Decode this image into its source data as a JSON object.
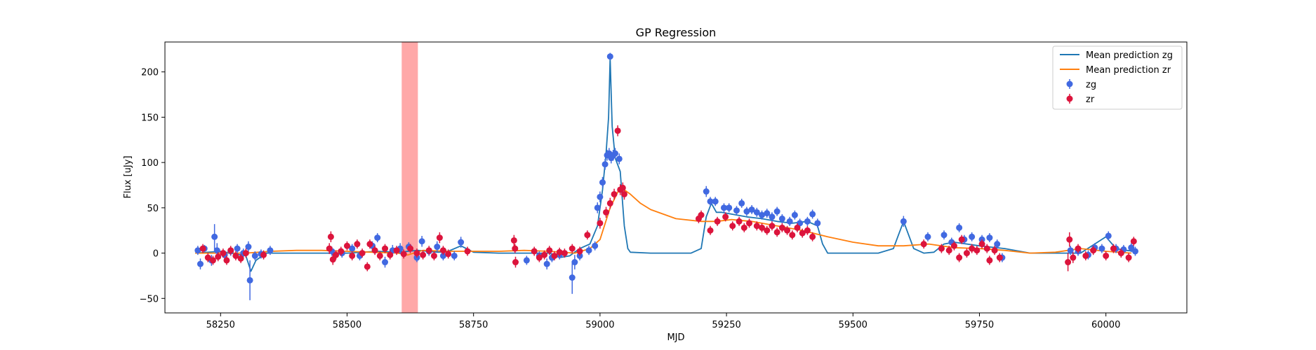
{
  "chart_data": {
    "type": "scatter",
    "title": "GP Regression",
    "xlabel": "MJD",
    "ylabel": "Flux [uJy]",
    "xlim": [
      58140,
      60160
    ],
    "ylim": [
      -66,
      233
    ],
    "xticks": [
      58250,
      58500,
      58750,
      59000,
      59250,
      59500,
      59750,
      60000
    ],
    "yticks": [
      -50,
      0,
      50,
      100,
      150,
      200
    ],
    "legend_position": "top-right",
    "highlight_band": {
      "x_range": [
        58608,
        58640
      ],
      "color": "#ff9999"
    },
    "series": [
      {
        "name": "Mean prediction zg",
        "kind": "line",
        "color": "#1f77b4",
        "x": [
          58200,
          58250,
          58300,
          58310,
          58320,
          58340,
          58400,
          58500,
          58560,
          58600,
          58640,
          58680,
          58700,
          58725,
          58750,
          58800,
          58850,
          58900,
          58920,
          58940,
          58960,
          58980,
          58995,
          59005,
          59012,
          59017,
          59020,
          59024,
          59030,
          59040,
          59048,
          59055,
          59060,
          59100,
          59180,
          59200,
          59210,
          59220,
          59230,
          59240,
          59260,
          59290,
          59320,
          59350,
          59380,
          59410,
          59430,
          59440,
          59450,
          59480,
          59550,
          59580,
          59590,
          59600,
          59610,
          59620,
          59640,
          59660,
          59680,
          59700,
          59750,
          59800,
          59850,
          59900,
          59950,
          60000,
          60020,
          60040,
          60060
        ],
        "y": [
          0,
          2,
          -3,
          -20,
          -8,
          0,
          0,
          0,
          2,
          1,
          3,
          1,
          2,
          8,
          1,
          0,
          0,
          0,
          -5,
          -3,
          5,
          10,
          30,
          70,
          110,
          150,
          215,
          140,
          105,
          90,
          30,
          5,
          1,
          0,
          0,
          5,
          40,
          55,
          45,
          45,
          43,
          40,
          38,
          35,
          33,
          35,
          30,
          10,
          0,
          0,
          0,
          5,
          20,
          35,
          20,
          5,
          0,
          1,
          10,
          12,
          8,
          5,
          0,
          0,
          0,
          18,
          5,
          3,
          2
        ]
      },
      {
        "name": "Mean prediction zr",
        "kind": "line",
        "color": "#ff7f0e",
        "x": [
          58200,
          58300,
          58350,
          58400,
          58450,
          58500,
          58550,
          58600,
          58620,
          58650,
          58700,
          58750,
          58800,
          58850,
          58900,
          58950,
          58980,
          59000,
          59020,
          59040,
          59060,
          59080,
          59100,
          59150,
          59200,
          59230,
          59260,
          59300,
          59350,
          59400,
          59450,
          59500,
          59550,
          59600,
          59650,
          59700,
          59750,
          59800,
          59850,
          59900,
          59950,
          60000,
          60050
        ],
        "y": [
          0,
          0,
          2,
          3,
          3,
          2,
          1,
          0,
          -2,
          3,
          2,
          2,
          2,
          3,
          2,
          0,
          5,
          15,
          50,
          73,
          65,
          55,
          48,
          38,
          35,
          35,
          37,
          35,
          30,
          25,
          18,
          12,
          8,
          8,
          10,
          6,
          5,
          3,
          0,
          1,
          5,
          2,
          0
        ]
      },
      {
        "name": "zg",
        "kind": "errorbar",
        "color": "#4169e1",
        "points": [
          [
            58205,
            3,
            5
          ],
          [
            58210,
            -12,
            6
          ],
          [
            58218,
            5,
            4
          ],
          [
            58232,
            -8,
            6
          ],
          [
            58238,
            18,
            14
          ],
          [
            58243,
            3,
            8
          ],
          [
            58258,
            -2,
            5
          ],
          [
            58270,
            2,
            5
          ],
          [
            58283,
            5,
            5
          ],
          [
            58295,
            0,
            5
          ],
          [
            58305,
            7,
            6
          ],
          [
            58308,
            -30,
            22
          ],
          [
            58318,
            -3,
            5
          ],
          [
            58330,
            -1,
            5
          ],
          [
            58348,
            3,
            5
          ],
          [
            58470,
            2,
            5
          ],
          [
            58490,
            0,
            5
          ],
          [
            58510,
            5,
            5
          ],
          [
            58525,
            -3,
            5
          ],
          [
            58550,
            8,
            5
          ],
          [
            58560,
            17,
            5
          ],
          [
            58575,
            -10,
            6
          ],
          [
            58590,
            3,
            6
          ],
          [
            58605,
            5,
            6
          ],
          [
            58622,
            7,
            5
          ],
          [
            58638,
            -5,
            5
          ],
          [
            58648,
            13,
            6
          ],
          [
            58662,
            2,
            5
          ],
          [
            58678,
            7,
            6
          ],
          [
            58690,
            -3,
            5
          ],
          [
            58712,
            -3,
            5
          ],
          [
            58725,
            12,
            6
          ],
          [
            58855,
            -8,
            5
          ],
          [
            58880,
            -3,
            5
          ],
          [
            58895,
            -12,
            6
          ],
          [
            58905,
            -5,
            5
          ],
          [
            58920,
            -2,
            5
          ],
          [
            58945,
            -27,
            18
          ],
          [
            58950,
            -10,
            8
          ],
          [
            58960,
            -3,
            5
          ],
          [
            58978,
            3,
            5
          ],
          [
            58990,
            8,
            5
          ],
          [
            58995,
            50,
            6
          ],
          [
            59000,
            62,
            6
          ],
          [
            59005,
            78,
            6
          ],
          [
            59010,
            98,
            6
          ],
          [
            59014,
            108,
            6
          ],
          [
            59018,
            110,
            6
          ],
          [
            59020,
            217,
            4
          ],
          [
            59022,
            105,
            6
          ],
          [
            59026,
            108,
            6
          ],
          [
            59030,
            110,
            6
          ],
          [
            59038,
            104,
            6
          ],
          [
            59210,
            68,
            6
          ],
          [
            59218,
            57,
            5
          ],
          [
            59228,
            57,
            5
          ],
          [
            59245,
            50,
            5
          ],
          [
            59255,
            50,
            5
          ],
          [
            59270,
            47,
            5
          ],
          [
            59280,
            55,
            5
          ],
          [
            59290,
            46,
            5
          ],
          [
            59300,
            48,
            5
          ],
          [
            59310,
            45,
            5
          ],
          [
            59320,
            42,
            5
          ],
          [
            59330,
            44,
            5
          ],
          [
            59340,
            40,
            5
          ],
          [
            59350,
            46,
            5
          ],
          [
            59360,
            38,
            5
          ],
          [
            59375,
            35,
            5
          ],
          [
            59385,
            42,
            5
          ],
          [
            59395,
            33,
            5
          ],
          [
            59410,
            35,
            5
          ],
          [
            59420,
            43,
            5
          ],
          [
            59430,
            33,
            5
          ],
          [
            59600,
            35,
            6
          ],
          [
            59648,
            18,
            5
          ],
          [
            59680,
            20,
            5
          ],
          [
            59695,
            12,
            5
          ],
          [
            59710,
            28,
            5
          ],
          [
            59720,
            15,
            5
          ],
          [
            59735,
            18,
            5
          ],
          [
            59755,
            15,
            5
          ],
          [
            59770,
            17,
            5
          ],
          [
            59785,
            10,
            5
          ],
          [
            59795,
            -5,
            5
          ],
          [
            59930,
            3,
            5
          ],
          [
            59945,
            2,
            5
          ],
          [
            59965,
            -2,
            5
          ],
          [
            59978,
            6,
            5
          ],
          [
            59992,
            5,
            5
          ],
          [
            60005,
            19,
            5
          ],
          [
            60020,
            5,
            5
          ],
          [
            60035,
            4,
            5
          ],
          [
            60050,
            6,
            5
          ],
          [
            60058,
            2,
            5
          ]
        ]
      },
      {
        "name": "zr",
        "kind": "errorbar",
        "color": "#dc143c",
        "points": [
          [
            58215,
            5,
            5
          ],
          [
            58225,
            -5,
            5
          ],
          [
            58235,
            -8,
            5
          ],
          [
            58245,
            -4,
            5
          ],
          [
            58255,
            0,
            5
          ],
          [
            58262,
            -8,
            5
          ],
          [
            58270,
            3,
            5
          ],
          [
            58280,
            -3,
            5
          ],
          [
            58290,
            -6,
            5
          ],
          [
            58300,
            0,
            5
          ],
          [
            58335,
            -2,
            5
          ],
          [
            58465,
            5,
            6
          ],
          [
            58468,
            18,
            6
          ],
          [
            58472,
            -7,
            6
          ],
          [
            58478,
            -2,
            5
          ],
          [
            58488,
            2,
            5
          ],
          [
            58500,
            8,
            5
          ],
          [
            58510,
            -3,
            5
          ],
          [
            58520,
            10,
            5
          ],
          [
            58530,
            0,
            5
          ],
          [
            58540,
            -15,
            5
          ],
          [
            58545,
            10,
            5
          ],
          [
            58555,
            3,
            5
          ],
          [
            58565,
            -3,
            5
          ],
          [
            58575,
            5,
            5
          ],
          [
            58585,
            -2,
            5
          ],
          [
            58598,
            3,
            5
          ],
          [
            58612,
            -1,
            5
          ],
          [
            58625,
            5,
            5
          ],
          [
            58638,
            0,
            5
          ],
          [
            58650,
            -2,
            5
          ],
          [
            58662,
            3,
            5
          ],
          [
            58672,
            -3,
            5
          ],
          [
            58683,
            17,
            6
          ],
          [
            58690,
            3,
            5
          ],
          [
            58700,
            -1,
            5
          ],
          [
            58738,
            2,
            5
          ],
          [
            58830,
            14,
            6
          ],
          [
            58832,
            5,
            5
          ],
          [
            58833,
            -10,
            6
          ],
          [
            58870,
            2,
            5
          ],
          [
            58880,
            -5,
            5
          ],
          [
            58890,
            -2,
            5
          ],
          [
            58900,
            3,
            5
          ],
          [
            58910,
            -3,
            5
          ],
          [
            58920,
            1,
            5
          ],
          [
            58930,
            0,
            5
          ],
          [
            58945,
            5,
            5
          ],
          [
            58960,
            2,
            5
          ],
          [
            58975,
            20,
            5
          ],
          [
            59000,
            33,
            6
          ],
          [
            59012,
            45,
            6
          ],
          [
            59020,
            55,
            6
          ],
          [
            59028,
            65,
            6
          ],
          [
            59035,
            135,
            6
          ],
          [
            59040,
            70,
            6
          ],
          [
            59045,
            72,
            6
          ],
          [
            59048,
            65,
            6
          ],
          [
            59195,
            38,
            5
          ],
          [
            59200,
            42,
            5
          ],
          [
            59218,
            25,
            5
          ],
          [
            59232,
            35,
            5
          ],
          [
            59248,
            40,
            5
          ],
          [
            59262,
            30,
            5
          ],
          [
            59275,
            35,
            5
          ],
          [
            59285,
            28,
            5
          ],
          [
            59295,
            33,
            5
          ],
          [
            59310,
            30,
            5
          ],
          [
            59320,
            28,
            5
          ],
          [
            59330,
            25,
            5
          ],
          [
            59340,
            30,
            5
          ],
          [
            59350,
            23,
            5
          ],
          [
            59360,
            28,
            5
          ],
          [
            59370,
            25,
            5
          ],
          [
            59380,
            20,
            5
          ],
          [
            59390,
            28,
            5
          ],
          [
            59400,
            22,
            5
          ],
          [
            59410,
            25,
            5
          ],
          [
            59420,
            18,
            5
          ],
          [
            59640,
            10,
            5
          ],
          [
            59675,
            5,
            5
          ],
          [
            59690,
            3,
            5
          ],
          [
            59700,
            8,
            5
          ],
          [
            59710,
            -5,
            5
          ],
          [
            59715,
            15,
            5
          ],
          [
            59725,
            0,
            5
          ],
          [
            59735,
            5,
            5
          ],
          [
            59745,
            3,
            5
          ],
          [
            59755,
            10,
            5
          ],
          [
            59765,
            5,
            5
          ],
          [
            59770,
            -8,
            5
          ],
          [
            59780,
            3,
            5
          ],
          [
            59790,
            -5,
            5
          ],
          [
            59925,
            -10,
            10
          ],
          [
            59928,
            15,
            8
          ],
          [
            59935,
            -5,
            6
          ],
          [
            59945,
            5,
            5
          ],
          [
            59960,
            -3,
            5
          ],
          [
            59975,
            3,
            5
          ],
          [
            60000,
            -3,
            5
          ],
          [
            60015,
            5,
            5
          ],
          [
            60030,
            0,
            5
          ],
          [
            60045,
            -5,
            5
          ],
          [
            60055,
            13,
            5
          ]
        ]
      }
    ]
  }
}
